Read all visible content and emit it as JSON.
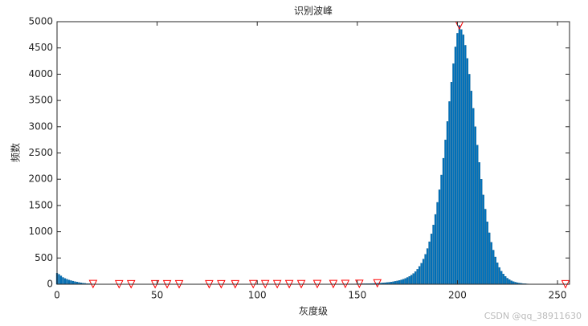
{
  "chart_data": {
    "type": "bar",
    "title": "识别波峰",
    "x_label": "灰度级",
    "y_label": "频数",
    "color": "#0072bd",
    "xlim": [
      0,
      256
    ],
    "ylim": [
      0,
      5000
    ],
    "xticks": [
      0,
      50,
      100,
      150,
      200,
      250
    ],
    "yticks": [
      0,
      500,
      1000,
      1500,
      2000,
      2500,
      3000,
      3500,
      4000,
      4500,
      5000
    ],
    "values": [
      210,
      190,
      160,
      130,
      110,
      95,
      80,
      70,
      60,
      50,
      42,
      35,
      28,
      22,
      17,
      13,
      10,
      8,
      6,
      5,
      4,
      3,
      3,
      2,
      2,
      2,
      2,
      1,
      1,
      1,
      1,
      1,
      2,
      1,
      1,
      1,
      1,
      2,
      1,
      1,
      1,
      1,
      1,
      2,
      1,
      1,
      1,
      1,
      1,
      2,
      1,
      1,
      1,
      1,
      1,
      2,
      1,
      1,
      1,
      1,
      1,
      2,
      1,
      1,
      1,
      1,
      1,
      1,
      1,
      1,
      1,
      1,
      1,
      1,
      1,
      1,
      2,
      1,
      1,
      1,
      1,
      1,
      2,
      1,
      1,
      1,
      1,
      1,
      1,
      2,
      2,
      2,
      2,
      2,
      2,
      2,
      2,
      2,
      3,
      2,
      2,
      2,
      2,
      2,
      3,
      2,
      2,
      2,
      2,
      2,
      3,
      3,
      3,
      3,
      3,
      3,
      4,
      3,
      3,
      3,
      3,
      3,
      4,
      4,
      4,
      4,
      4,
      4,
      4,
      4,
      5,
      5,
      5,
      5,
      5,
      5,
      5,
      5,
      6,
      5,
      6,
      6,
      6,
      6,
      7,
      6,
      7,
      7,
      7,
      7,
      8,
      9,
      9,
      10,
      11,
      12,
      13,
      14,
      15,
      17,
      20,
      22,
      24,
      27,
      30,
      34,
      38,
      43,
      49,
      56,
      64,
      73,
      84,
      97,
      112,
      130,
      150,
      175,
      205,
      240,
      285,
      340,
      400,
      480,
      570,
      680,
      810,
      960,
      1130,
      1330,
      1560,
      1800,
      2080,
      2400,
      2750,
      3100,
      3480,
      3850,
      4200,
      4520,
      4780,
      4930,
      4850,
      4750,
      4550,
      4300,
      4000,
      3680,
      3350,
      3000,
      2650,
      2320,
      2000,
      1700,
      1430,
      1190,
      980,
      800,
      650,
      520,
      410,
      320,
      250,
      195,
      150,
      115,
      88,
      67,
      51,
      39,
      30,
      23,
      17,
      13,
      10,
      7,
      5,
      4,
      3,
      2,
      2,
      1,
      1,
      1,
      1,
      1,
      1,
      1,
      1,
      1,
      1,
      1,
      1,
      1,
      1,
      1
    ],
    "peaks": {
      "color": "#ff0000",
      "x": [
        18,
        31,
        37,
        49,
        55,
        61,
        76,
        82,
        89,
        98,
        104,
        110,
        116,
        122,
        130,
        138,
        144,
        151,
        160,
        201,
        254
      ],
      "y": [
        6,
        1,
        2,
        2,
        2,
        2,
        2,
        2,
        2,
        3,
        3,
        3,
        4,
        4,
        5,
        6,
        7,
        9,
        20,
        4930,
        1
      ]
    },
    "watermark": "CSDN @qq_38911630"
  }
}
